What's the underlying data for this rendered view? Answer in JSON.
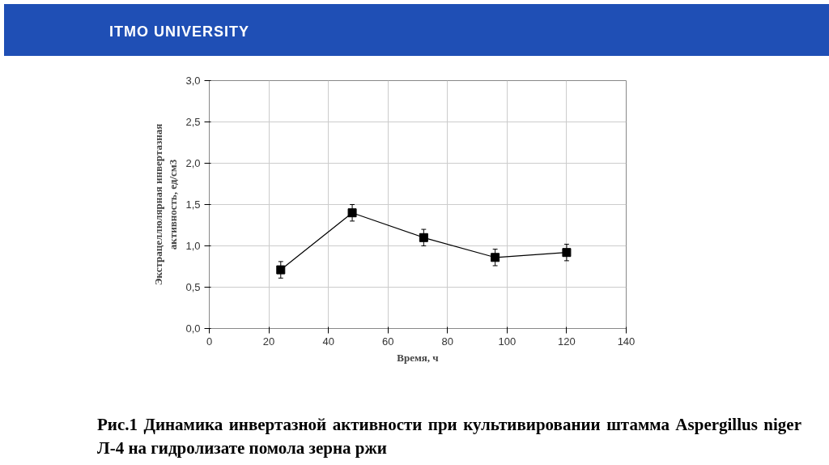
{
  "chart_data": {
    "type": "line",
    "xlabel": "Время, ч",
    "ylabel": "Экстрацеллюлярная инвертазная\nактивность, ед/см3",
    "x": [
      24,
      48,
      72,
      96,
      120
    ],
    "series": [
      {
        "color": "#000000",
        "values": [
          0.71,
          1.4,
          1.1,
          0.86,
          0.92
        ],
        "errors": [
          0.1,
          0.1,
          0.1,
          0.1,
          0.1
        ]
      }
    ],
    "marker": "square",
    "line_style": "solid",
    "grid": true,
    "xlim": [
      0,
      140
    ],
    "xticks": [
      0,
      20,
      40,
      60,
      80,
      100,
      120,
      140
    ],
    "ylim": [
      0,
      3
    ],
    "yticks": [
      {
        "value": 0,
        "label": "0,0"
      },
      {
        "value": 0.5,
        "label": "0,5"
      },
      {
        "value": 1,
        "label": "1,0"
      },
      {
        "value": 1.5,
        "label": "1,5"
      },
      {
        "value": 2,
        "label": "2,0"
      },
      {
        "value": 2.5,
        "label": "2,5"
      },
      {
        "value": 3,
        "label": "3,0"
      }
    ],
    "annotations": [
      "ITMO UNIVERSITY",
      "Рис.1 Динамика инвертазной активности при культивировании штамма Aspergillus niger Л-4 на гидролизате помола зерна ржи"
    ]
  }
}
